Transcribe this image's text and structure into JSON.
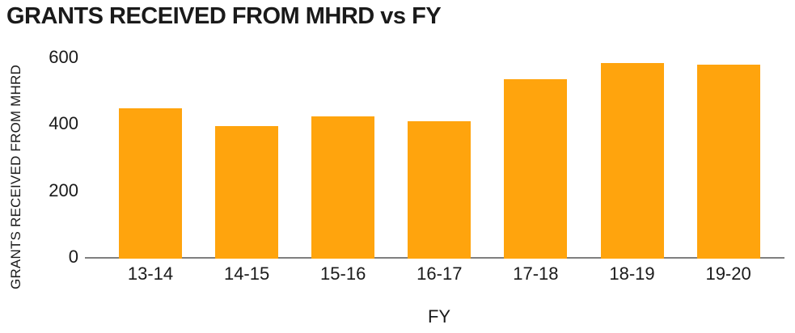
{
  "chart": {
    "title": "GRANTS RECEIVED FROM MHRD vs FY",
    "x_axis_title": "FY",
    "y_axis_title": "GRANTS RECEIVED FROM MHRD"
  },
  "chart_data": {
    "type": "bar",
    "title": "GRANTS RECEIVED FROM MHRD vs FY",
    "categories": [
      "13-14",
      "14-15",
      "15-16",
      "16-17",
      "17-18",
      "18-19",
      "19-20"
    ],
    "values": [
      450,
      395,
      425,
      410,
      535,
      585,
      580
    ],
    "xlabel": "FY",
    "ylabel": "GRANTS RECEIVED FROM MHRD",
    "ylim": [
      0,
      600
    ],
    "yticks": [
      0,
      200,
      400,
      600
    ],
    "grid": false,
    "legend": false,
    "bar_color": "#FFA40D",
    "axis_line_color": "#7f7f7f",
    "text_color": "#1a1a1a",
    "background_color": "#ffffff"
  }
}
